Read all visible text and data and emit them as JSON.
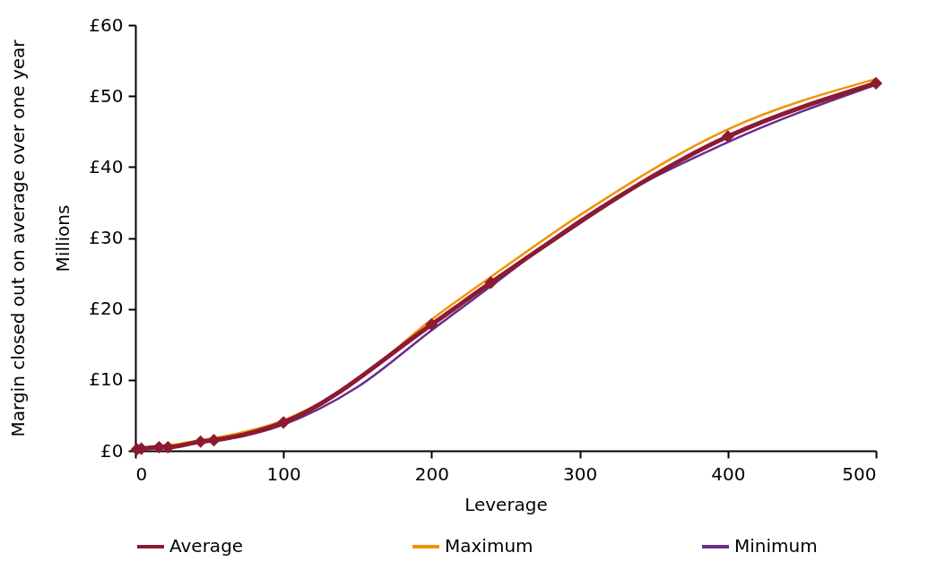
{
  "chart_data": {
    "type": "line",
    "xlabel": "Leverage",
    "ylabel": "Margin closed out on average over one year\nMillions",
    "xlim": [
      0,
      500
    ],
    "xticks": [
      0,
      100,
      200,
      300,
      400,
      500
    ],
    "ylim": [
      0,
      60
    ],
    "yticks": [
      {
        "value": 0,
        "label": "£0"
      },
      {
        "value": 10,
        "label": "£10"
      },
      {
        "value": 20,
        "label": "£20"
      },
      {
        "value": 30,
        "label": "£30"
      },
      {
        "value": 40,
        "label": "£40"
      },
      {
        "value": 50,
        "label": "£50"
      },
      {
        "value": 60,
        "label": "£60"
      }
    ],
    "grid": false,
    "legend": "bottom",
    "series": [
      {
        "name": "Average",
        "color": "#8b1a32",
        "marker": "diamond",
        "x": [
          1,
          4,
          16,
          22,
          44,
          53,
          100,
          200,
          240,
          400,
          500
        ],
        "values": [
          0.2,
          0.3,
          0.5,
          0.5,
          1.3,
          1.5,
          4.0,
          17.8,
          23.7,
          44.3,
          51.8
        ]
      },
      {
        "name": "Maximum",
        "color": "#f39200",
        "marker": "none",
        "x": [
          16,
          22,
          44,
          53,
          100,
          150,
          200,
          240,
          300,
          400,
          500
        ],
        "values": [
          0.7,
          0.8,
          1.5,
          1.8,
          4.3,
          10.0,
          18.5,
          24.5,
          33.2,
          45.3,
          52.4
        ]
      },
      {
        "name": "Minimum",
        "color": "#6a2c8c",
        "marker": "none",
        "x": [
          44,
          53,
          100,
          150,
          200,
          240,
          300,
          400,
          500
        ],
        "values": [
          1.2,
          1.4,
          3.7,
          9.0,
          17.0,
          23.2,
          32.5,
          43.5,
          51.6
        ]
      }
    ]
  }
}
